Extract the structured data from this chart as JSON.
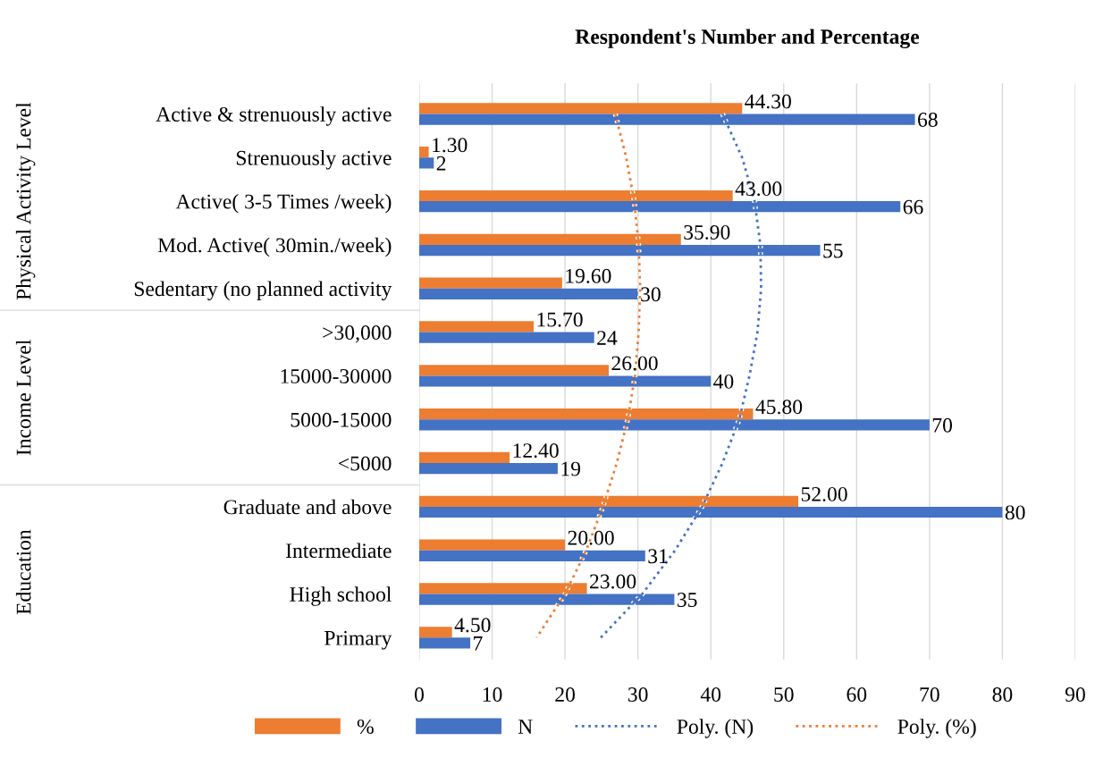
{
  "chart_data": {
    "type": "bar",
    "orientation": "horizontal",
    "title": "Respondent's Number and Percentage",
    "categories": [
      "Active & strenuously active",
      "Strenuously active",
      "Active( 3-5 Times /week)",
      "Mod. Active( 30min./week)",
      "Sedentary (no planned activity",
      ">30,000",
      "15000-30000",
      "5000-15000",
      "<5000",
      "Graduate and above",
      "Intermediate",
      "High school",
      "Primary"
    ],
    "series": [
      {
        "name": "%",
        "color": "#ed7d31",
        "values": [
          44.3,
          1.3,
          43.0,
          35.9,
          19.6,
          15.7,
          26.0,
          45.8,
          12.4,
          52.0,
          20.0,
          23.0,
          4.5
        ],
        "value_labels": [
          "44.30",
          "1.30",
          "43.00",
          "35.90",
          "19.60",
          "15.70",
          "26.00",
          "45.80",
          "12.40",
          "52.00",
          "20.00",
          "23.00",
          "4.50"
        ]
      },
      {
        "name": "N",
        "color": "#4472c4",
        "values": [
          68,
          2,
          66,
          55,
          30,
          24,
          40,
          70,
          19,
          80,
          31,
          35,
          7
        ],
        "value_labels": [
          "68",
          "2",
          "66",
          "55",
          "30",
          "24",
          "40",
          "70",
          "19",
          "80",
          "31",
          "35",
          "7"
        ]
      },
      {
        "name": "Poly. (N)",
        "type": "line",
        "line_style": "dotted",
        "color": "#4472c4",
        "values": [
          41.6,
          44.3,
          46.0,
          46.8,
          46.9,
          46.4,
          45.3,
          43.9,
          41.6,
          38.8,
          35.1,
          30.6,
          24.9
        ]
      },
      {
        "name": "Poly. (%)",
        "type": "line",
        "line_style": "dotted",
        "color": "#ed7d31",
        "values": [
          26.9,
          28.4,
          29.5,
          30.1,
          30.3,
          30.1,
          29.6,
          28.6,
          27.1,
          25.2,
          22.9,
          20.0,
          16.1
        ]
      }
    ],
    "annotations": [
      "Physical Activity Level",
      "Income Level",
      "Education"
    ],
    "xlim": [
      0,
      90
    ],
    "xticks": [
      0,
      10,
      20,
      30,
      40,
      50,
      60,
      70,
      80,
      90
    ],
    "grid": "x",
    "legend": "bottom"
  }
}
